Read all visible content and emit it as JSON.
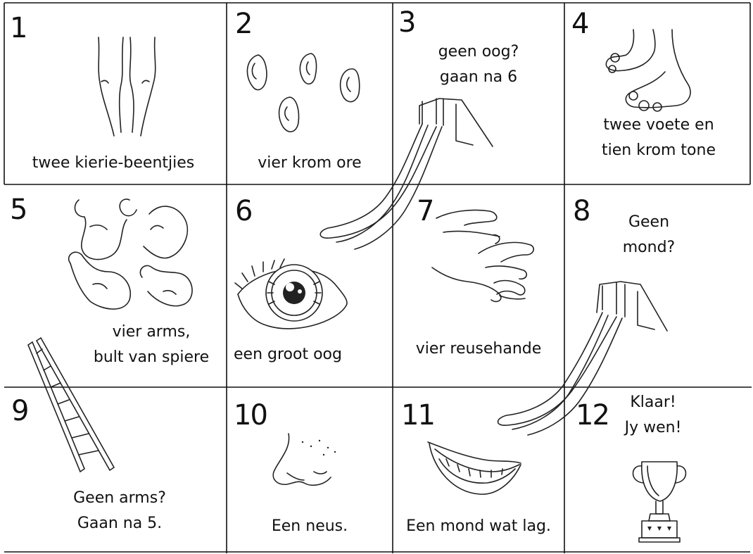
{
  "board": {
    "squares": [
      {
        "number": "1",
        "text": [
          "twee kierie-beentjies"
        ],
        "icon": "legs-icon"
      },
      {
        "number": "2",
        "text": [
          "vier krom ore"
        ],
        "icon": "ears-icon"
      },
      {
        "number": "3",
        "text": [
          "geen oog?",
          "gaan na 6"
        ],
        "icon": "slide-icon"
      },
      {
        "number": "4",
        "text": [
          "twee voete en",
          "tien krom tone"
        ],
        "icon": "feet-icon"
      },
      {
        "number": "5",
        "text": [
          "vier arms,",
          "bult van spiere"
        ],
        "icon": "arms-icon"
      },
      {
        "number": "6",
        "text": [
          "een groot oog"
        ],
        "icon": "eye-icon"
      },
      {
        "number": "7",
        "text": [
          "vier reusehande"
        ],
        "icon": "hands-icon"
      },
      {
        "number": "8",
        "text": [
          "Geen",
          "mond?"
        ],
        "icon": "slide-icon"
      },
      {
        "number": "9",
        "text": [
          "Geen arms?",
          "Gaan na 5."
        ],
        "icon": "ladder-icon"
      },
      {
        "number": "10",
        "text": [
          "Een neus."
        ],
        "icon": "nose-icon"
      },
      {
        "number": "11",
        "text": [
          "Een mond wat lag."
        ],
        "icon": "mouth-icon"
      },
      {
        "number": "12",
        "text": [
          "Klaar!",
          "Jy wen!"
        ],
        "icon": "trophy-icon"
      }
    ]
  }
}
